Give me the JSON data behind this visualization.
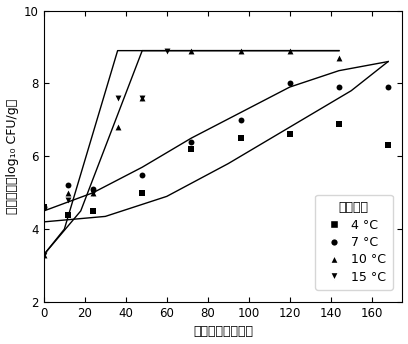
{
  "xlabel": "贯藏时间（小时）",
  "ylabel": "好氧菌数（log₁₀ CFU/g）",
  "xlim": [
    0,
    175
  ],
  "ylim": [
    2,
    10
  ],
  "xticks": [
    0,
    20,
    40,
    60,
    80,
    100,
    120,
    140,
    160
  ],
  "yticks": [
    2,
    4,
    6,
    8,
    10
  ],
  "legend_title": "线性模型",
  "series": {
    "4C": {
      "scatter_x": [
        0,
        12,
        24,
        48,
        72,
        96,
        120,
        144,
        168
      ],
      "scatter_y": [
        4.6,
        4.4,
        4.5,
        5.0,
        6.2,
        6.5,
        6.6,
        6.9,
        6.3
      ],
      "line_x": [
        0,
        30,
        60,
        90,
        120,
        150,
        168
      ],
      "line_y": [
        4.2,
        4.35,
        4.9,
        5.8,
        6.8,
        7.8,
        8.6
      ],
      "marker": "s",
      "label": "4 °C"
    },
    "7C": {
      "scatter_x": [
        0,
        12,
        24,
        48,
        72,
        96,
        120,
        144,
        168
      ],
      "scatter_y": [
        4.6,
        5.2,
        5.1,
        5.5,
        6.4,
        7.0,
        8.0,
        7.9,
        7.9
      ],
      "line_x": [
        0,
        24,
        48,
        72,
        96,
        120,
        144,
        168
      ],
      "line_y": [
        4.5,
        5.0,
        5.7,
        6.5,
        7.2,
        7.9,
        8.35,
        8.6
      ],
      "marker": "o",
      "label": "7 °C"
    },
    "10C": {
      "scatter_x": [
        0,
        12,
        24,
        36,
        48,
        72,
        96,
        120,
        144
      ],
      "scatter_y": [
        3.3,
        5.0,
        5.0,
        6.8,
        7.6,
        8.9,
        8.9,
        8.9,
        8.7
      ],
      "line_x": [
        0,
        18,
        48,
        72,
        96,
        144
      ],
      "line_y": [
        3.3,
        4.5,
        8.9,
        8.9,
        8.9,
        8.9
      ],
      "marker": "^",
      "label": "10 °C"
    },
    "15C": {
      "scatter_x": [
        0,
        12,
        24,
        36,
        48,
        60
      ],
      "scatter_y": [
        3.3,
        4.8,
        5.0,
        7.6,
        7.6,
        8.9
      ],
      "line_x": [
        0,
        10,
        36,
        55,
        72,
        144
      ],
      "line_y": [
        3.3,
        4.0,
        8.9,
        8.9,
        8.9,
        8.9
      ],
      "marker": "v",
      "label": "15 °C"
    }
  }
}
